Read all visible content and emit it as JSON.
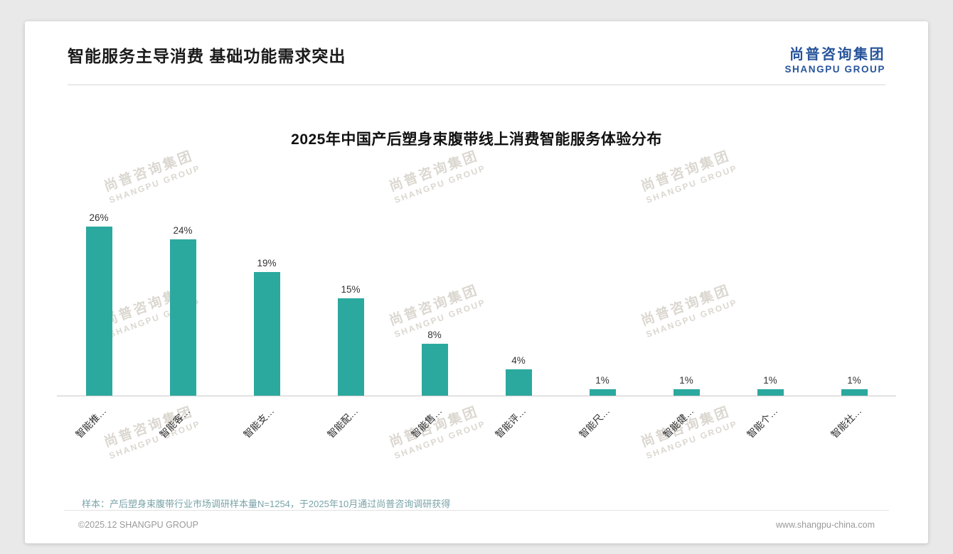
{
  "header": {
    "title": "智能服务主导消费 基础功能需求突出",
    "logo_cn": "尚普咨询集团",
    "logo_en": "SHANGPU GROUP"
  },
  "watermark": {
    "line1": "尚普咨询集团",
    "line2": "SHANGPU GROUP"
  },
  "chart_data": {
    "type": "bar",
    "title": "2025年中国产后塑身束腹带线上消费智能服务体验分布",
    "categories": [
      "智能推…",
      "智能客…",
      "智能支…",
      "智能配…",
      "智能售…",
      "智能评…",
      "智能尺…",
      "智能健…",
      "智能个…",
      "智能社…"
    ],
    "values": [
      26,
      24,
      19,
      15,
      8,
      4,
      1,
      1,
      1,
      1
    ],
    "value_labels": [
      "26%",
      "24%",
      "19%",
      "15%",
      "8%",
      "4%",
      "1%",
      "1%",
      "1%",
      "1%"
    ],
    "xlabel": "",
    "ylabel": "",
    "ylim": [
      0,
      30
    ],
    "y_axis_visible": false,
    "grid": false,
    "legend": "none",
    "bar_color": "#2BA99F"
  },
  "footer": {
    "note": "样本：产后塑身束腹带行业市场调研样本量N=1254，于2025年10月通过尚普咨询调研获得",
    "copyright": "©2025.12 SHANGPU GROUP",
    "website": "www.shangpu-china.com"
  },
  "colors": {
    "bar": "#2BA99F",
    "logo_blue": "#27549B",
    "note_teal": "#79A3A9",
    "watermark": "#B9B0A2"
  }
}
